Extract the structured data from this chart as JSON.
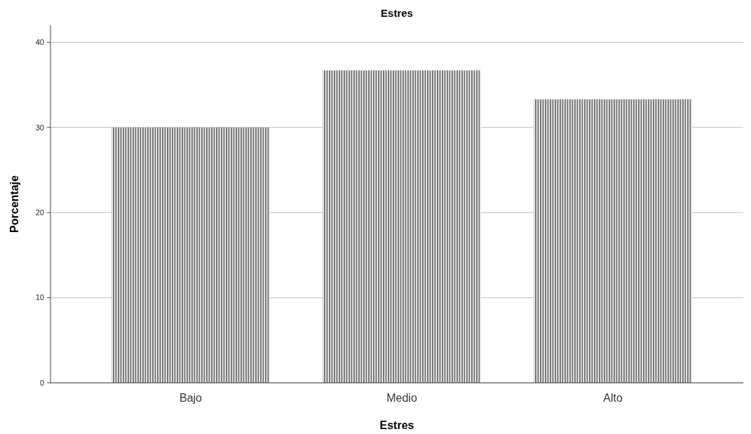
{
  "chart_data": {
    "type": "bar",
    "title": "Estres",
    "xlabel": "Estres",
    "ylabel": "Porcentaje",
    "categories": [
      "Bajo",
      "Medio",
      "Alto"
    ],
    "values": [
      30,
      36.7,
      33.3
    ],
    "color": "#6e6e6e",
    "ylim": [
      0,
      42
    ],
    "yticks": [
      0,
      10,
      20,
      30,
      40
    ],
    "grid": "y"
  }
}
